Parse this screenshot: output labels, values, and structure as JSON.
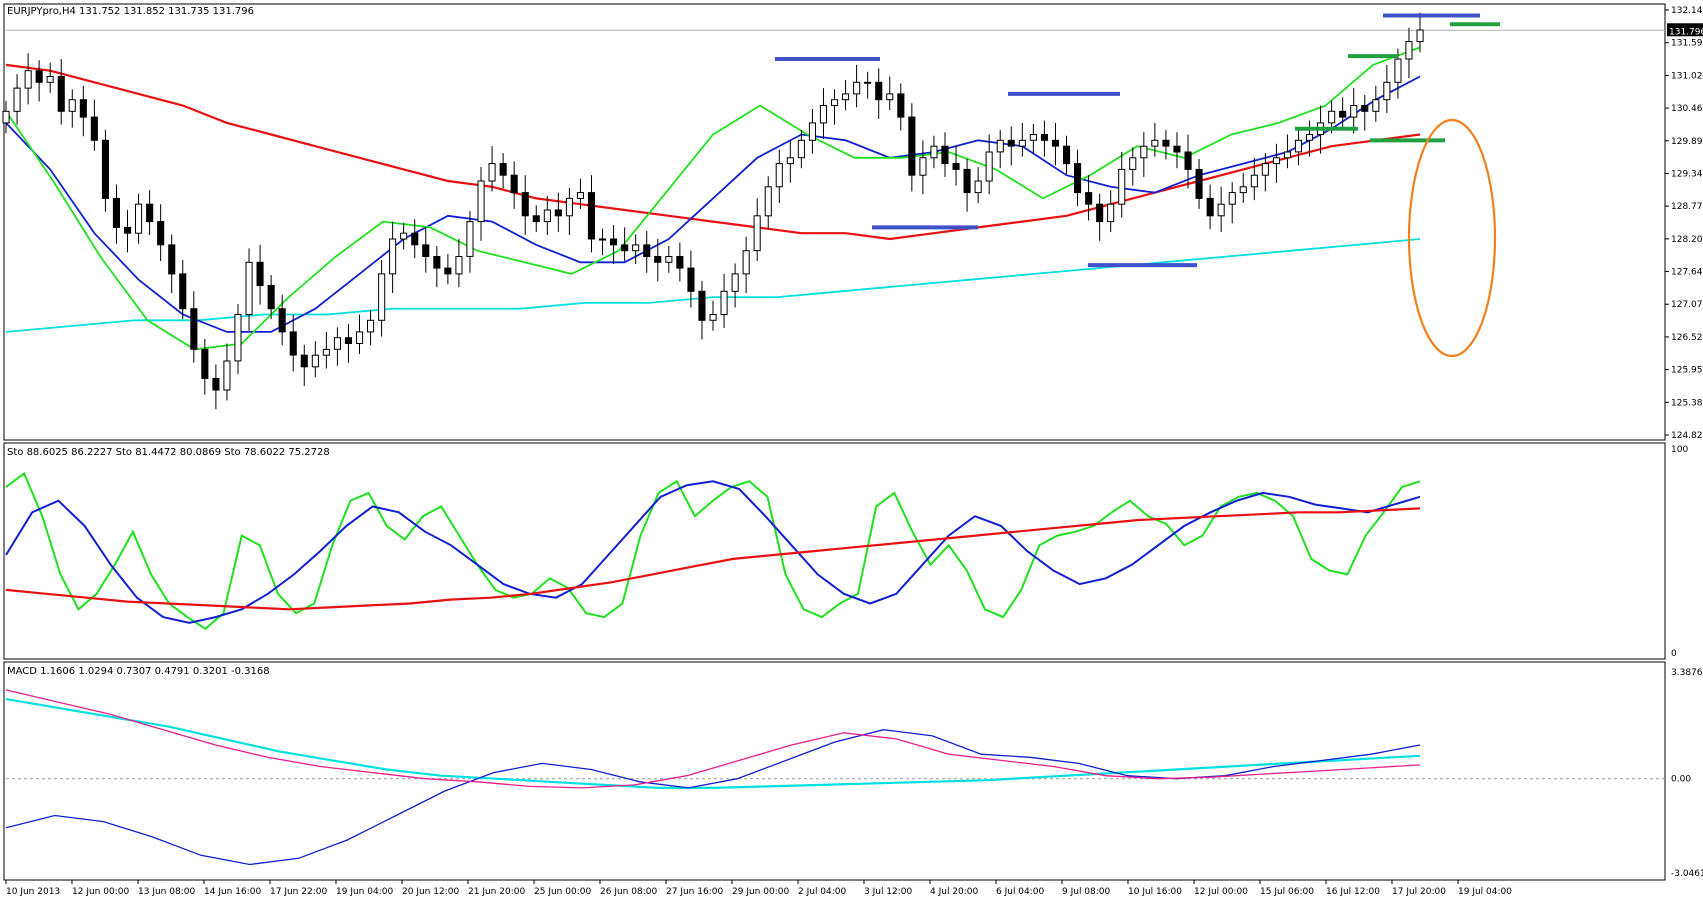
{
  "chart_data": {
    "type": "candlestick",
    "title": "EURJPYpro,H4  131.752 131.852 131.735 131.796",
    "symbol": "EURJPYpro",
    "timeframe": "H4",
    "last_price_label": "131.796",
    "price_axis": {
      "range": [
        124.825,
        132.145
      ],
      "tick_labels": [
        "132.145",
        "131.590",
        "131.020",
        "130.465",
        "129.895",
        "129.340",
        "128.770",
        "128.200",
        "127.645",
        "127.075",
        "126.520",
        "125.950",
        "125.380",
        "124.825"
      ]
    },
    "time_axis": {
      "tick_labels": [
        "10 Jun 2013",
        "12 Jun 00:00",
        "13 Jun 08:00",
        "14 Jun 16:00",
        "17 Jun 22:00",
        "19 Jun 04:00",
        "20 Jun 12:00",
        "21 Jun 20:00",
        "25 Jun 00:00",
        "26 Jun 08:00",
        "27 Jun 16:00",
        "29 Jun 00:00",
        "2 Jul 04:00",
        "3 Jul 12:00",
        "4 Jul 20:00",
        "6 Jul 04:00",
        "9 Jul 08:00",
        "10 Jul 16:00",
        "12 Jul 00:00",
        "15 Jul 06:00",
        "16 Jul 12:00",
        "17 Jul 20:00",
        "19 Jul 04:00"
      ]
    },
    "price_series": [
      {
        "name": "close",
        "color": "#000000",
        "values": [
          130.4,
          130.8,
          131.1,
          130.9,
          131.0,
          130.4,
          130.6,
          130.3,
          129.9,
          128.9,
          128.4,
          128.3,
          128.8,
          128.5,
          128.1,
          127.6,
          127.0,
          126.3,
          125.8,
          125.6,
          126.1,
          126.9,
          127.8,
          127.4,
          127.0,
          126.6,
          126.2,
          126.0,
          126.2,
          126.3,
          126.5,
          126.4,
          126.6,
          126.8,
          127.6,
          128.2,
          128.3,
          128.1,
          127.9,
          127.7,
          127.6,
          127.9,
          128.5,
          129.2,
          129.5,
          129.3,
          129.0,
          128.6,
          128.5,
          128.7,
          128.6,
          128.9,
          129.0,
          128.2,
          128.2,
          128.1,
          128.0,
          128.1,
          127.9,
          127.8,
          127.9,
          127.7,
          127.3,
          126.8,
          126.9,
          127.3,
          127.6,
          128.0,
          128.6,
          129.1,
          129.5,
          129.6,
          129.9,
          130.2,
          130.5,
          130.6,
          130.7,
          130.9,
          130.9,
          130.6,
          130.7,
          130.3,
          129.3,
          129.6,
          129.8,
          129.5,
          129.4,
          129.0,
          129.2,
          129.7,
          129.9,
          129.8,
          129.9,
          130.0,
          129.9,
          129.8,
          129.5,
          129.0,
          128.8,
          128.5,
          128.8,
          129.4,
          129.6,
          129.8,
          129.9,
          129.8,
          129.7,
          129.4,
          128.9,
          128.6,
          128.8,
          129.0,
          129.1,
          129.3,
          129.5,
          129.6,
          129.7,
          129.9,
          130.0,
          130.2,
          130.4,
          130.3,
          130.5,
          130.4,
          130.6,
          130.9,
          131.3,
          131.6,
          131.8
        ]
      }
    ],
    "overlays": [
      {
        "name": "ma_red_thick",
        "color": "#e81010",
        "values": [
          131.2,
          131.1,
          130.9,
          130.7,
          130.5,
          130.2,
          130.0,
          129.8,
          129.6,
          129.4,
          129.2,
          129.1,
          128.9,
          128.8,
          128.7,
          128.6,
          128.5,
          128.4,
          128.3,
          128.3,
          128.2,
          128.3,
          128.4,
          128.5,
          128.6,
          128.8,
          129.0,
          129.2,
          129.4,
          129.6,
          129.8,
          129.9,
          130.0
        ]
      },
      {
        "name": "ma_cyan",
        "color": "#00e0e0",
        "values": [
          126.6,
          126.7,
          126.8,
          126.8,
          126.9,
          126.9,
          127.0,
          127.0,
          127.0,
          127.1,
          127.1,
          127.2,
          127.2,
          127.3,
          127.4,
          127.5,
          127.6,
          127.7,
          127.8,
          127.9,
          128.0,
          128.1,
          128.2
        ]
      },
      {
        "name": "ma_blue",
        "color": "#1020d0",
        "values": [
          130.2,
          129.4,
          128.3,
          127.5,
          126.9,
          126.6,
          126.6,
          127.0,
          127.6,
          128.2,
          128.6,
          128.5,
          128.1,
          127.8,
          127.8,
          128.2,
          128.9,
          129.6,
          130.0,
          129.9,
          129.6,
          129.7,
          129.9,
          129.8,
          129.3,
          129.1,
          129.0,
          129.3,
          129.5,
          129.7,
          130.1,
          130.6,
          131.0
        ]
      },
      {
        "name": "ma_green",
        "color": "#20e020",
        "values": [
          130.4,
          129.2,
          127.9,
          126.8,
          126.3,
          126.4,
          127.2,
          127.9,
          128.5,
          128.4,
          128.0,
          127.8,
          127.6,
          128.0,
          129.0,
          130.0,
          130.5,
          130.0,
          129.6,
          129.6,
          129.7,
          129.4,
          128.9,
          129.3,
          129.8,
          129.6,
          130.0,
          130.2,
          130.5,
          131.2,
          131.5
        ]
      }
    ],
    "horizontal_levels": [
      {
        "color": "#4050c8",
        "price": 131.3
      },
      {
        "color": "#4050c8",
        "price": 130.7
      },
      {
        "color": "#4050c8",
        "price": 128.4
      },
      {
        "color": "#4050c8",
        "price": 127.75
      },
      {
        "color": "#4050c8",
        "price": 132.05
      },
      {
        "color": "#20a040",
        "price": 131.9
      },
      {
        "color": "#20a040",
        "price": 131.35
      },
      {
        "color": "#20a040",
        "price": 130.1
      },
      {
        "color": "#20a040",
        "price": 129.9
      }
    ],
    "annotation_ellipse_color": "#f08020",
    "stochastic": {
      "legend": "Sto 88.6025 86.2227  Sto 81.4472 80.0869  Sto 78.6022 75.2728",
      "range": [
        0,
        100
      ],
      "tick_labels": [
        "100",
        "0"
      ],
      "series": [
        {
          "color": "#20e020",
          "values": [
            85,
            92,
            70,
            40,
            22,
            30,
            45,
            62,
            40,
            25,
            18,
            12,
            20,
            60,
            55,
            30,
            20,
            25,
            55,
            78,
            82,
            65,
            58,
            70,
            75,
            60,
            45,
            32,
            28,
            30,
            38,
            33,
            20,
            18,
            25,
            60,
            82,
            88,
            70,
            78,
            85,
            88,
            80,
            40,
            22,
            18,
            25,
            30,
            75,
            82,
            62,
            45,
            55,
            42,
            22,
            18,
            32,
            55,
            60,
            62,
            65,
            72,
            78,
            70,
            66,
            55,
            60,
            75,
            80,
            82,
            78,
            70,
            48,
            42,
            40,
            60,
            72,
            85,
            88
          ]
        },
        {
          "color": "#1020d0",
          "values": [
            50,
            72,
            78,
            65,
            45,
            28,
            18,
            15,
            18,
            22,
            30,
            40,
            52,
            65,
            75,
            72,
            62,
            55,
            45,
            35,
            30,
            28,
            35,
            50,
            65,
            80,
            86,
            88,
            84,
            70,
            55,
            40,
            30,
            25,
            30,
            45,
            60,
            70,
            65,
            52,
            42,
            35,
            38,
            45,
            55,
            65,
            72,
            78,
            82,
            80,
            76,
            74,
            72,
            76,
            80
          ]
        },
        {
          "color": "#e81010",
          "values": [
            32,
            30,
            28,
            26,
            25,
            24,
            23,
            22,
            23,
            24,
            25,
            27,
            28,
            30,
            33,
            36,
            40,
            44,
            48,
            50,
            52,
            54,
            56,
            58,
            60,
            62,
            64,
            66,
            68,
            69,
            70,
            71,
            72,
            72,
            73,
            74
          ]
        }
      ]
    },
    "macd": {
      "legend": "MACD 1.1606 1.0294 0.7307 0.4791 0.3201 -0.3168",
      "range": [
        -3.0461,
        3.3876
      ],
      "tick_labels": [
        "3.3876",
        "0.00",
        "-3.0461"
      ],
      "series": [
        {
          "color": "#00e0e0",
          "values": [
            2.6,
            2.3,
            2.0,
            1.7,
            1.3,
            0.9,
            0.6,
            0.3,
            0.1,
            0.0,
            -0.1,
            -0.2,
            -0.3,
            -0.3,
            -0.25,
            -0.2,
            -0.15,
            -0.1,
            -0.05,
            0.05,
            0.15,
            0.25,
            0.35,
            0.45,
            0.55,
            0.65,
            0.75
          ]
        },
        {
          "color": "#1020d0",
          "values": [
            -1.6,
            -1.2,
            -1.4,
            -1.9,
            -2.5,
            -2.8,
            -2.6,
            -2.0,
            -1.2,
            -0.4,
            0.2,
            0.5,
            0.3,
            -0.1,
            -0.3,
            0.0,
            0.6,
            1.2,
            1.6,
            1.4,
            0.8,
            0.7,
            0.5,
            0.1,
            0.0,
            0.1,
            0.4,
            0.6,
            0.8,
            1.1
          ]
        },
        {
          "color": "#e8208c",
          "values": [
            2.9,
            2.5,
            2.1,
            1.6,
            1.1,
            0.7,
            0.4,
            0.2,
            0.0,
            -0.1,
            -0.25,
            -0.3,
            -0.2,
            0.1,
            0.6,
            1.1,
            1.5,
            1.3,
            0.8,
            0.6,
            0.4,
            0.1,
            0.0,
            0.05,
            0.15,
            0.25,
            0.35,
            0.45
          ]
        }
      ]
    },
    "grid": false,
    "legend_position": "top-left"
  }
}
